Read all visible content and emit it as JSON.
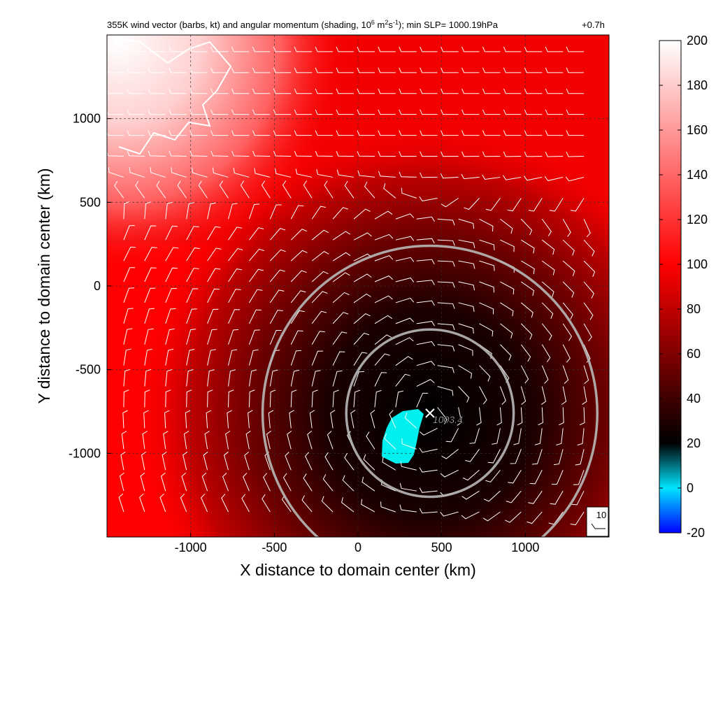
{
  "title": {
    "part1": "355K wind vector (barbs, kt) and angular momentum (shading, 10",
    "exp1": "6",
    "part2": " m",
    "exp2": "2",
    "part3": "s",
    "exp3": "-1",
    "part4": "); min SLP= 1000.19hPa",
    "time": "+0.7h"
  },
  "chart_data": {
    "type": "heatmap",
    "xlabel": "X distance to domain center (km)",
    "ylabel": "Y distance to domain center (km)",
    "xlim": [
      -1500,
      1500
    ],
    "ylim": [
      -1500,
      1500
    ],
    "xticks": [
      -1000,
      -500,
      0,
      500,
      1000
    ],
    "yticks": [
      -1000,
      -500,
      0,
      500,
      1000
    ],
    "grid": "dashed",
    "storm_center": {
      "x": 430,
      "y": -760,
      "label": "1003.4",
      "marker": "x"
    },
    "rings_km": [
      500,
      1000
    ],
    "colorbar": {
      "ticks": [
        200,
        180,
        160,
        140,
        120,
        100,
        80,
        60,
        40,
        20,
        0,
        -20
      ],
      "range": [
        -20,
        200
      ],
      "stops": [
        {
          "v": -20,
          "c": "#0000ff"
        },
        {
          "v": 0,
          "c": "#00e5ff"
        },
        {
          "v": 20,
          "c": "#000000"
        },
        {
          "v": 100,
          "c": "#ff0000"
        },
        {
          "v": 200,
          "c": "#ffffff"
        }
      ]
    },
    "reference_barb": {
      "label": "10"
    }
  },
  "colors": {
    "background_field": "#ff0000",
    "vortex_core": "#000000",
    "negative_region": "#00f0f0",
    "rings": "#b0b0b0",
    "barbs": "#ffffff",
    "coastline": "#ffffff"
  }
}
